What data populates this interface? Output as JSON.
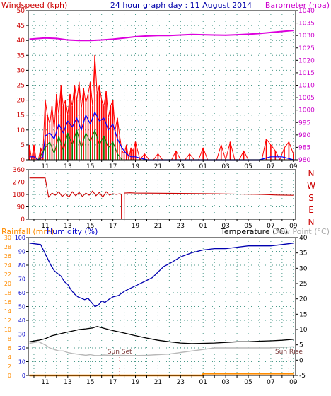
{
  "header": {
    "left_title": "Windspeed (kph)",
    "center_title": "24 hour graph day : 11 August 2014",
    "right_title": "Barometer (hpa)"
  },
  "direction_labels": [
    "N",
    "W",
    "S",
    "E",
    "N"
  ],
  "lower_header": {
    "rainfall": "Rainfall (mm)",
    "humidity": "Humidity (%)",
    "temperature": "Temperature (°C)",
    "dewpoint": "Dew Point (°C)"
  },
  "annotations": {
    "sunset": "Sun Set",
    "sunrise": "Sun Rise"
  },
  "colors": {
    "wind_gust": "#ff0000",
    "wind_avg": "#0000ff",
    "wind_min": "#008000",
    "barometer": "#dd00dd",
    "direction": "#cc0000",
    "humidity": "#0000b0",
    "temperature": "#000000",
    "dewpoint": "#b8b8b8",
    "rainfall": "#ff8c00",
    "left_axis": "#cc0000",
    "right_axis": "#cc00cc",
    "lower_left_axis": "#0000cc"
  },
  "chart_data": [
    {
      "id": "wind",
      "type": "line",
      "x_ticks": [
        "11",
        "13",
        "15",
        "17",
        "19",
        "21",
        "23",
        "01",
        "03",
        "05",
        "07",
        "09"
      ],
      "hour_range": [
        9.5,
        33.2
      ],
      "y_left": {
        "label": "Windspeed (kph)",
        "ticks": [
          0,
          5,
          10,
          15,
          20,
          25,
          30,
          35,
          40,
          45,
          50
        ],
        "lim": [
          0,
          50
        ]
      },
      "y_right": {
        "label": "Barometer (hpa)",
        "ticks": [
          980,
          985,
          990,
          995,
          1000,
          1005,
          1010,
          1015,
          1020,
          1025,
          1030,
          1035,
          1040
        ],
        "lim": [
          980,
          1040
        ]
      },
      "series": [
        {
          "key": "gust",
          "x": [
            9.6,
            9.8,
            10.0,
            10.2,
            10.4,
            10.6,
            10.8,
            11.0,
            11.2,
            11.4,
            11.6,
            11.8,
            12.0,
            12.2,
            12.4,
            12.6,
            12.8,
            13.0,
            13.2,
            13.4,
            13.6,
            13.8,
            14.0,
            14.2,
            14.4,
            14.6,
            14.8,
            15.0,
            15.2,
            15.4,
            15.6,
            15.8,
            16.0,
            16.2,
            16.4,
            16.6,
            16.8,
            17.0,
            17.2,
            17.4,
            17.6,
            17.8,
            18.0,
            18.2,
            18.4,
            18.6,
            18.8,
            19.0,
            19.4,
            19.8,
            20.2,
            20.6,
            21.0,
            21.4,
            21.8,
            22.2,
            22.6,
            23.0,
            23.4,
            23.8,
            24.2,
            24.6,
            25.0,
            25.4,
            25.8,
            26.2,
            26.6,
            27.0,
            27.4,
            27.8,
            28.2,
            28.6,
            29.0,
            29.4,
            29.8,
            30.2,
            30.6,
            31.0,
            31.4,
            31.8,
            32.2,
            32.6,
            33.0
          ],
          "values": [
            5,
            0,
            5,
            0,
            0,
            4,
            2,
            20,
            15,
            12,
            18,
            10,
            22,
            15,
            25,
            18,
            20,
            15,
            22,
            18,
            25,
            20,
            26,
            17,
            24,
            19,
            22,
            26,
            18,
            35,
            22,
            25,
            20,
            18,
            23,
            14,
            18,
            20,
            10,
            14,
            8,
            3,
            2,
            5,
            0,
            4,
            3,
            6,
            0,
            2,
            0,
            0,
            2,
            0,
            0,
            0,
            3,
            0,
            0,
            2,
            0,
            0,
            4,
            0,
            0,
            0,
            5,
            0,
            6,
            0,
            0,
            3,
            0,
            0,
            0,
            0,
            7,
            5,
            3,
            0,
            4,
            6,
            2
          ]
        },
        {
          "key": "average",
          "x": [
            9.6,
            10.0,
            10.4,
            10.8,
            11.0,
            11.4,
            11.8,
            12.2,
            12.6,
            13.0,
            13.4,
            13.8,
            14.2,
            14.6,
            15.0,
            15.4,
            15.8,
            16.2,
            16.6,
            17.0,
            17.4,
            17.8,
            18.2,
            18.6,
            19.0,
            20.0,
            22.0,
            24.0,
            26.0,
            28.0,
            30.0,
            31.0,
            32.0,
            33.0
          ],
          "values": [
            1,
            1,
            0,
            1,
            8,
            9,
            7,
            12,
            9,
            13,
            11,
            14,
            10,
            15,
            12,
            16,
            13,
            14,
            10,
            12,
            7,
            4,
            2,
            1,
            1,
            0,
            0,
            0,
            0,
            0,
            0,
            1,
            1,
            0
          ]
        },
        {
          "key": "minimum",
          "x": [
            9.6,
            10.4,
            11.0,
            11.4,
            11.8,
            12.2,
            12.6,
            13.0,
            13.4,
            13.8,
            14.2,
            14.6,
            15.0,
            15.4,
            15.8,
            16.2,
            16.6,
            17.0,
            17.4,
            17.8,
            18.2,
            19.0,
            24.0,
            33.0
          ],
          "values": [
            0,
            0,
            4,
            6,
            2,
            8,
            3,
            9,
            5,
            10,
            4,
            9,
            6,
            10,
            5,
            8,
            4,
            6,
            2,
            0,
            0,
            0,
            0,
            0
          ]
        },
        {
          "key": "barometer",
          "axis": "right",
          "x": [
            9.6,
            11.0,
            12.0,
            13.0,
            14.0,
            15.0,
            16.0,
            17.0,
            18.0,
            19.0,
            20.0,
            21.0,
            22.0,
            23.0,
            24.0,
            25.0,
            26.0,
            27.0,
            28.0,
            29.0,
            30.0,
            31.0,
            32.0,
            33.0
          ],
          "values": [
            1028.5,
            1029,
            1028.8,
            1028.2,
            1028,
            1028,
            1028.2,
            1028.5,
            1029,
            1029.5,
            1029.8,
            1030,
            1030,
            1030.2,
            1030.4,
            1030.3,
            1030.2,
            1030.1,
            1030.3,
            1030.5,
            1030.8,
            1031.2,
            1031.6,
            1032
          ]
        }
      ]
    },
    {
      "id": "direction",
      "type": "line",
      "y_ticks": [
        0,
        90,
        180,
        270,
        360
      ],
      "y_lim": [
        0,
        360
      ],
      "series": [
        {
          "key": "direction",
          "x": [
            9.6,
            11.0,
            11.3,
            11.6,
            11.9,
            12.2,
            12.5,
            12.8,
            13.1,
            13.4,
            13.7,
            14.0,
            14.3,
            14.6,
            14.9,
            15.2,
            15.5,
            15.8,
            16.1,
            16.4,
            16.7,
            17.0,
            17.3,
            17.6,
            17.75,
            17.76,
            17.9,
            18.0,
            18.01,
            18.5,
            19.0,
            22.0,
            26.0,
            30.0,
            31.5,
            33.0
          ],
          "values": [
            300,
            300,
            160,
            190,
            175,
            200,
            165,
            185,
            160,
            200,
            170,
            195,
            165,
            190,
            175,
            205,
            170,
            195,
            160,
            200,
            175,
            185,
            180,
            185,
            182,
            0,
            0,
            0,
            190,
            192,
            190,
            188,
            185,
            180,
            176,
            174
          ]
        }
      ]
    },
    {
      "id": "climate",
      "type": "line",
      "y_left_outer": {
        "label": "Rainfall (mm)",
        "ticks": [
          0,
          2,
          4,
          6,
          8,
          10,
          12,
          14,
          16,
          18,
          20,
          22,
          24,
          26,
          28,
          30
        ],
        "lim": [
          0,
          30
        ]
      },
      "y_left_inner": {
        "label": "Humidity (%)",
        "ticks": [
          0,
          10,
          20,
          30,
          40,
          50,
          60,
          70,
          80,
          90,
          100
        ],
        "lim": [
          0,
          100
        ]
      },
      "y_right": {
        "label": "Temperature (°C)",
        "ticks": [
          -5,
          0,
          5,
          10,
          15,
          20,
          25,
          30,
          35,
          40
        ],
        "lim": [
          -5,
          40
        ]
      },
      "series": [
        {
          "key": "humidity",
          "x": [
            9.6,
            10.6,
            10.9,
            11.2,
            11.5,
            11.8,
            12.1,
            12.4,
            12.7,
            13.0,
            13.3,
            13.6,
            13.9,
            14.2,
            14.5,
            14.8,
            15.1,
            15.4,
            15.7,
            16.0,
            16.3,
            16.6,
            17.0,
            17.5,
            18.0,
            18.5,
            19.0,
            19.5,
            20.0,
            20.5,
            21.0,
            21.5,
            22.0,
            23.0,
            24.0,
            25.0,
            26.0,
            27.0,
            28.0,
            29.0,
            30.0,
            31.0,
            32.0,
            33.0
          ],
          "values": [
            96,
            95,
            90,
            85,
            80,
            76,
            74,
            72,
            68,
            66,
            62,
            59,
            57,
            56,
            55,
            56,
            53,
            50,
            51,
            54,
            53,
            55,
            57,
            58,
            61,
            63,
            65,
            67,
            69,
            71,
            75,
            79,
            81,
            86,
            89,
            91,
            92,
            92,
            93,
            94,
            94,
            94,
            95,
            96
          ]
        },
        {
          "key": "temperature",
          "x": [
            9.6,
            10.4,
            11.0,
            11.6,
            12.2,
            12.8,
            13.4,
            14.0,
            14.6,
            15.2,
            15.6,
            16.0,
            16.6,
            17.2,
            17.8,
            18.4,
            19.0,
            20.0,
            21.0,
            22.0,
            23.0,
            24.0,
            25.0,
            26.0,
            27.0,
            28.0,
            29.0,
            30.0,
            31.0,
            32.0,
            33.0
          ],
          "values": [
            6,
            6.5,
            7,
            8,
            8.5,
            9,
            9.5,
            10,
            10.2,
            10.5,
            11,
            10.6,
            10,
            9.5,
            9,
            8.5,
            8,
            7.2,
            6.5,
            6,
            5.6,
            5.4,
            5.5,
            5.6,
            5.8,
            6,
            6,
            6.2,
            6.3,
            6.5,
            6.8
          ]
        },
        {
          "key": "dewpoint",
          "x": [
            9.6,
            10.4,
            11.0,
            11.4,
            11.8,
            12.2,
            12.6,
            13.0,
            13.4,
            13.8,
            14.2,
            14.6,
            15.0,
            15.4,
            15.8,
            16.2,
            16.6,
            17.2,
            17.8,
            18.4,
            19.0,
            20.0,
            21.0,
            22.0,
            23.0,
            24.0,
            25.0,
            26.0,
            27.0,
            28.0,
            29.0,
            30.0,
            31.0,
            32.0,
            33.0
          ],
          "values": [
            5.5,
            6,
            5,
            4,
            3.5,
            3,
            3,
            2.5,
            2.2,
            2,
            1.8,
            1.6,
            1.8,
            1.5,
            1.5,
            1.7,
            1.6,
            1.5,
            1.6,
            1.5,
            1.5,
            1.6,
            1.8,
            2,
            2.5,
            3,
            3.5,
            4,
            4,
            4,
            4,
            4,
            4,
            4.2,
            4.4
          ]
        },
        {
          "key": "rainfall",
          "x": [
            9.6,
            25.0,
            25.01,
            33.0
          ],
          "values": [
            0,
            0,
            0.4,
            0.4
          ]
        }
      ],
      "events": [
        {
          "key": "sunset",
          "x": 17.6
        },
        {
          "key": "sunrise",
          "x": 32.6
        }
      ]
    }
  ]
}
